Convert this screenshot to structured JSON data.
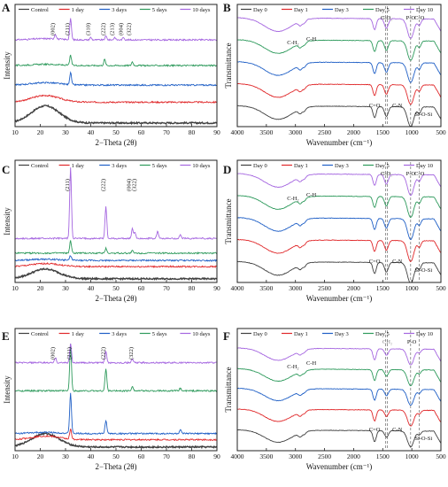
{
  "chart_data": [
    {
      "panel": "A",
      "type": "line",
      "subtype": "xrd",
      "xlabel": "2−Theta (2θ)",
      "ylabel": "Intensity",
      "xlim": [
        10,
        90
      ],
      "xticks": [
        10,
        20,
        30,
        40,
        50,
        60,
        70,
        80,
        90
      ],
      "legend": [
        "Control",
        "1 day",
        "3 days",
        "5 days",
        "10 days"
      ],
      "colors": [
        "#404040",
        "#e0282a",
        "#1f5fc6",
        "#2e9a5c",
        "#a566e0"
      ],
      "offsets": [
        0.03,
        0.2,
        0.34,
        0.5,
        0.71
      ],
      "amorphous": [
        [
          0,
          0.14
        ],
        [
          1,
          0.055
        ],
        [
          2,
          0.02
        ],
        [
          3,
          0.01
        ],
        [
          4,
          0.01
        ]
      ],
      "peaks": [
        {
          "series": 4,
          "x": 32,
          "h": 0.17
        },
        {
          "series": 4,
          "x": 26,
          "h": 0.04
        },
        {
          "series": 4,
          "x": 40,
          "h": 0.02
        },
        {
          "series": 4,
          "x": 46,
          "h": 0.03
        },
        {
          "series": 4,
          "x": 49.5,
          "h": 0.02
        },
        {
          "series": 4,
          "x": 53,
          "h": 0.02
        },
        {
          "series": 3,
          "x": 32,
          "h": 0.08
        },
        {
          "series": 3,
          "x": 45.5,
          "h": 0.05
        },
        {
          "series": 3,
          "x": 56.5,
          "h": 0.03
        },
        {
          "series": 2,
          "x": 32,
          "h": 0.1
        }
      ],
      "annotations": [
        {
          "x": 26,
          "text": "(002)"
        },
        {
          "x": 31.8,
          "text": "(211)"
        },
        {
          "x": 40,
          "text": "(310)"
        },
        {
          "x": 46,
          "text": "(222)"
        },
        {
          "x": 49.5,
          "text": "(213)"
        },
        {
          "x": 53,
          "text": "(004)"
        },
        {
          "x": 56.2,
          "text": "(322)"
        }
      ],
      "legend_placement": "top"
    },
    {
      "panel": "B",
      "type": "line",
      "subtype": "ftir",
      "xlabel": "Wavenumber (cm⁻¹)",
      "ylabel": "Transmittance",
      "xlim": [
        4000,
        500
      ],
      "xticks": [
        4000,
        3500,
        3000,
        2500,
        2000,
        1500,
        1000,
        500
      ],
      "legend": [
        "Day 0",
        "Day 1",
        "Day 3",
        "Day 5",
        "Day 10"
      ],
      "colors": [
        "#404040",
        "#e0282a",
        "#1f5fc6",
        "#2e9a5c",
        "#a566e0"
      ],
      "offsets": [
        0.16,
        0.34,
        0.52,
        0.7,
        0.88
      ],
      "bands": [
        [
          3300,
          0.11
        ],
        [
          2920,
          0.035
        ],
        [
          2850,
          0.025
        ],
        [
          1640,
          0.09
        ],
        [
          1450,
          0.05
        ],
        [
          1420,
          0.04
        ],
        [
          1020,
          0.16
        ],
        [
          870,
          0.05
        ]
      ],
      "vlines": [
        1450,
        1420,
        1020,
        870
      ],
      "labels_top": [
        {
          "x": 1450,
          "text": "C-O"
        },
        {
          "x": 1415,
          "text": "CH₂"
        },
        {
          "x": 1020,
          "text": "P-O"
        },
        {
          "x": 870,
          "text": "C-O"
        }
      ],
      "labels_mid": [
        {
          "x": 2920,
          "text": "C-H₂"
        },
        {
          "x": 2850,
          "text": "C-H"
        }
      ],
      "labels_bottom": [
        {
          "x": 1640,
          "text": "C=O"
        },
        {
          "x": 1250,
          "text": "C-N"
        },
        {
          "x": 800,
          "text": "Si-O-Si"
        }
      ],
      "legend_placement": "top"
    },
    {
      "panel": "C",
      "type": "line",
      "subtype": "xrd",
      "xlabel": "2−Theta (2θ)",
      "ylabel": "Intensity",
      "xlim": [
        10,
        90
      ],
      "xticks": [
        10,
        20,
        30,
        40,
        50,
        60,
        70,
        80,
        90
      ],
      "legend": [
        "Control",
        "1 day",
        "3 days",
        "5 days",
        "10 days"
      ],
      "colors": [
        "#404040",
        "#e0282a",
        "#1f5fc6",
        "#2e9a5c",
        "#a566e0"
      ],
      "offsets": [
        0.03,
        0.13,
        0.18,
        0.24,
        0.36
      ],
      "amorphous": [
        [
          0,
          0.08
        ],
        [
          1,
          0.025
        ],
        [
          2,
          0.01
        ],
        [
          3,
          0.0
        ],
        [
          4,
          0.0
        ]
      ],
      "peaks": [
        {
          "series": 4,
          "x": 32,
          "h": 0.58
        },
        {
          "series": 4,
          "x": 46,
          "h": 0.26
        },
        {
          "series": 4,
          "x": 56.5,
          "h": 0.08
        },
        {
          "series": 4,
          "x": 57.5,
          "h": 0.05
        },
        {
          "series": 4,
          "x": 66.5,
          "h": 0.06
        },
        {
          "series": 4,
          "x": 75.5,
          "h": 0.03
        },
        {
          "series": 3,
          "x": 32,
          "h": 0.1
        },
        {
          "series": 3,
          "x": 46,
          "h": 0.04
        },
        {
          "series": 3,
          "x": 56.5,
          "h": 0.02
        },
        {
          "series": 2,
          "x": 32,
          "h": 0.04
        }
      ],
      "annotations": [
        {
          "x": 31.8,
          "text": "(211)"
        },
        {
          "x": 46,
          "text": "(222)"
        },
        {
          "x": 56.2,
          "text": "(004)"
        },
        {
          "x": 58.2,
          "text": "(322)"
        }
      ],
      "legend_placement": "top"
    },
    {
      "panel": "D",
      "type": "line",
      "subtype": "ftir",
      "xlabel": "Wavenumber (cm⁻¹)",
      "ylabel": "Transmittance",
      "xlim": [
        4000,
        500
      ],
      "xticks": [
        4000,
        3500,
        3000,
        2500,
        2000,
        1500,
        1000,
        500
      ],
      "legend": [
        "Day 0",
        "Day 1",
        "Day 3",
        "Day 5",
        "Day 10"
      ],
      "colors": [
        "#404040",
        "#e0282a",
        "#1f5fc6",
        "#2e9a5c",
        "#a566e0"
      ],
      "offsets": [
        0.16,
        0.34,
        0.52,
        0.7,
        0.88
      ],
      "bands": [
        [
          3300,
          0.11
        ],
        [
          2920,
          0.035
        ],
        [
          2850,
          0.025
        ],
        [
          1640,
          0.09
        ],
        [
          1450,
          0.05
        ],
        [
          1420,
          0.04
        ],
        [
          1020,
          0.17
        ],
        [
          870,
          0.05
        ]
      ],
      "vlines": [
        1450,
        1420,
        1020,
        870
      ],
      "labels_top": [
        {
          "x": 1450,
          "text": "C-O"
        },
        {
          "x": 1415,
          "text": "CH₂"
        },
        {
          "x": 1020,
          "text": "P-O"
        },
        {
          "x": 870,
          "text": "C-O"
        }
      ],
      "labels_mid": [
        {
          "x": 2920,
          "text": "C-H₂"
        },
        {
          "x": 2850,
          "text": "C-H"
        }
      ],
      "labels_bottom": [
        {
          "x": 1640,
          "text": "C=O"
        },
        {
          "x": 1250,
          "text": "C-N"
        },
        {
          "x": 800,
          "text": "Si-O-Si"
        }
      ],
      "legend_placement": "top"
    },
    {
      "panel": "E",
      "type": "line",
      "subtype": "xrd",
      "xlabel": "2−Theta (2θ)",
      "ylabel": "Intensity",
      "xlim": [
        10,
        90
      ],
      "xticks": [
        10,
        20,
        30,
        40,
        50,
        60,
        70,
        80,
        90
      ],
      "legend": [
        "Control",
        "1 day",
        "3 days",
        "5 days",
        "10 days"
      ],
      "colors": [
        "#404040",
        "#e0282a",
        "#1f5fc6",
        "#2e9a5c",
        "#a566e0"
      ],
      "offsets": [
        0.03,
        0.09,
        0.14,
        0.49,
        0.72
      ],
      "amorphous": [
        [
          0,
          0.11
        ],
        [
          1,
          0.03
        ],
        [
          2,
          0.01
        ],
        [
          3,
          0.0
        ],
        [
          4,
          0.0
        ]
      ],
      "peaks": [
        {
          "series": 4,
          "x": 32,
          "h": 0.16
        },
        {
          "series": 4,
          "x": 26,
          "h": 0.04
        },
        {
          "series": 4,
          "x": 46,
          "h": 0.09
        },
        {
          "series": 4,
          "x": 56.5,
          "h": 0.03
        },
        {
          "series": 3,
          "x": 32,
          "h": 0.38
        },
        {
          "series": 3,
          "x": 46,
          "h": 0.18
        },
        {
          "series": 3,
          "x": 56.5,
          "h": 0.04
        },
        {
          "series": 3,
          "x": 75.5,
          "h": 0.02
        },
        {
          "series": 2,
          "x": 32,
          "h": 0.33
        },
        {
          "series": 2,
          "x": 46,
          "h": 0.11
        },
        {
          "series": 2,
          "x": 75.5,
          "h": 0.03
        },
        {
          "series": 1,
          "x": 32,
          "h": 0.08
        }
      ],
      "annotations": [
        {
          "x": 26,
          "text": "(002)"
        },
        {
          "x": 32.5,
          "text": "(211)"
        },
        {
          "x": 46,
          "text": "(222)"
        },
        {
          "x": 57,
          "text": "(322)"
        }
      ],
      "legend_placement": "top"
    },
    {
      "panel": "F",
      "type": "line",
      "subtype": "ftir",
      "xlabel": "Wavenumber (cm⁻¹)",
      "ylabel": "Transmittance",
      "xlim": [
        4000,
        500
      ],
      "xticks": [
        4000,
        3500,
        3000,
        2500,
        2000,
        1500,
        1000,
        500
      ],
      "legend": [
        "Day 0",
        "Day 1",
        "Day 3",
        "Day 5",
        "Day 10"
      ],
      "colors": [
        "#404040",
        "#e0282a",
        "#1f5fc6",
        "#2e9a5c",
        "#a566e0"
      ],
      "offsets": [
        0.16,
        0.33,
        0.5,
        0.66,
        0.83
      ],
      "bands": [
        [
          3300,
          0.1
        ],
        [
          2920,
          0.03
        ],
        [
          2850,
          0.02
        ],
        [
          1640,
          0.09
        ],
        [
          1450,
          0.03
        ],
        [
          1420,
          0.03
        ],
        [
          1020,
          0.13
        ],
        [
          870,
          0.03
        ]
      ],
      "vlines": [
        1450,
        1420,
        1020,
        870
      ],
      "labels_top": [
        {
          "x": 1420,
          "text": "CH₂"
        },
        {
          "x": 1000,
          "text": "P-O"
        }
      ],
      "labels_mid": [
        {
          "x": 2920,
          "text": "C-H₂"
        },
        {
          "x": 2850,
          "text": "C-H"
        }
      ],
      "labels_bottom": [
        {
          "x": 1640,
          "text": "C=O"
        },
        {
          "x": 1250,
          "text": "C-N"
        },
        {
          "x": 800,
          "text": "Si-O-Si"
        }
      ],
      "legend_placement": "top"
    }
  ]
}
